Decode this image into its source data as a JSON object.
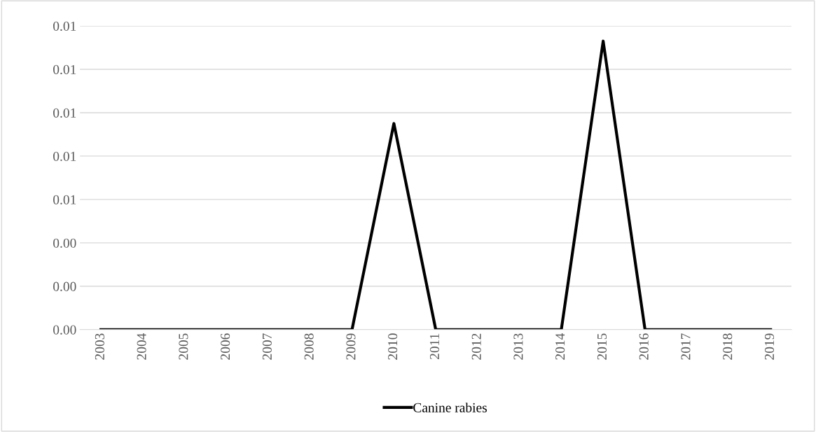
{
  "chart_data": {
    "type": "line",
    "categories": [
      "2003",
      "2004",
      "2005",
      "2006",
      "2007",
      "2008",
      "2009",
      "2010",
      "2011",
      "2012",
      "2013",
      "2014",
      "2015",
      "2016",
      "2017",
      "2018",
      "2019"
    ],
    "series": [
      {
        "name": "Canine rabies",
        "color": "#000000",
        "values": [
          0,
          0,
          0,
          0,
          0,
          0,
          0,
          0.0095,
          0,
          0,
          0,
          0,
          0.0133,
          0,
          0,
          0,
          0
        ]
      }
    ],
    "ylim": [
      0,
      0.014
    ],
    "yticks": [
      {
        "value": 0,
        "label": "0.00"
      },
      {
        "value": 0.002,
        "label": "0.00"
      },
      {
        "value": 0.004,
        "label": "0.00"
      },
      {
        "value": 0.006,
        "label": "0.01"
      },
      {
        "value": 0.008,
        "label": "0.01"
      },
      {
        "value": 0.01,
        "label": "0.01"
      },
      {
        "value": 0.012,
        "label": "0.01"
      },
      {
        "value": 0.014,
        "label": "0.01"
      }
    ],
    "grid": "y",
    "legend": "bottom",
    "marker": "none",
    "line_style": "solid"
  }
}
